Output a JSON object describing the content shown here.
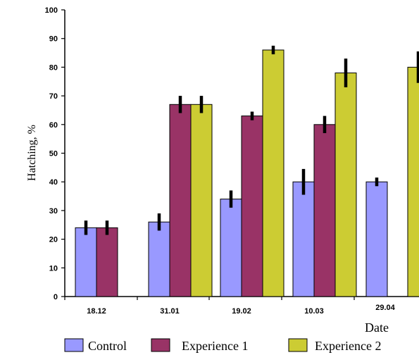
{
  "chart_data": {
    "type": "bar",
    "title": "",
    "xlabel": "Date",
    "ylabel": "Hatching, %",
    "ylim": [
      0,
      100
    ],
    "yticks": [
      0,
      10,
      20,
      30,
      40,
      50,
      60,
      70,
      80,
      90,
      100
    ],
    "grid": false,
    "legend_position": "bottom",
    "categories": [
      "18.12",
      "31.01",
      "19.02",
      "10.03",
      "29.04"
    ],
    "series": [
      {
        "name": "Control",
        "color": "#9999ff",
        "values": [
          24,
          26,
          34,
          40,
          40
        ],
        "errors": [
          2.5,
          3,
          3,
          4.5,
          1.5
        ]
      },
      {
        "name": "Experience 1",
        "color": "#993366",
        "values": [
          24,
          67,
          63,
          60,
          null
        ],
        "errors": [
          2.5,
          3,
          1.5,
          3,
          null
        ]
      },
      {
        "name": "Experience 2",
        "color": "#cccc33",
        "values": [
          null,
          67,
          86,
          78,
          80
        ],
        "errors": [
          null,
          3,
          1.5,
          5,
          5.5
        ]
      }
    ]
  }
}
